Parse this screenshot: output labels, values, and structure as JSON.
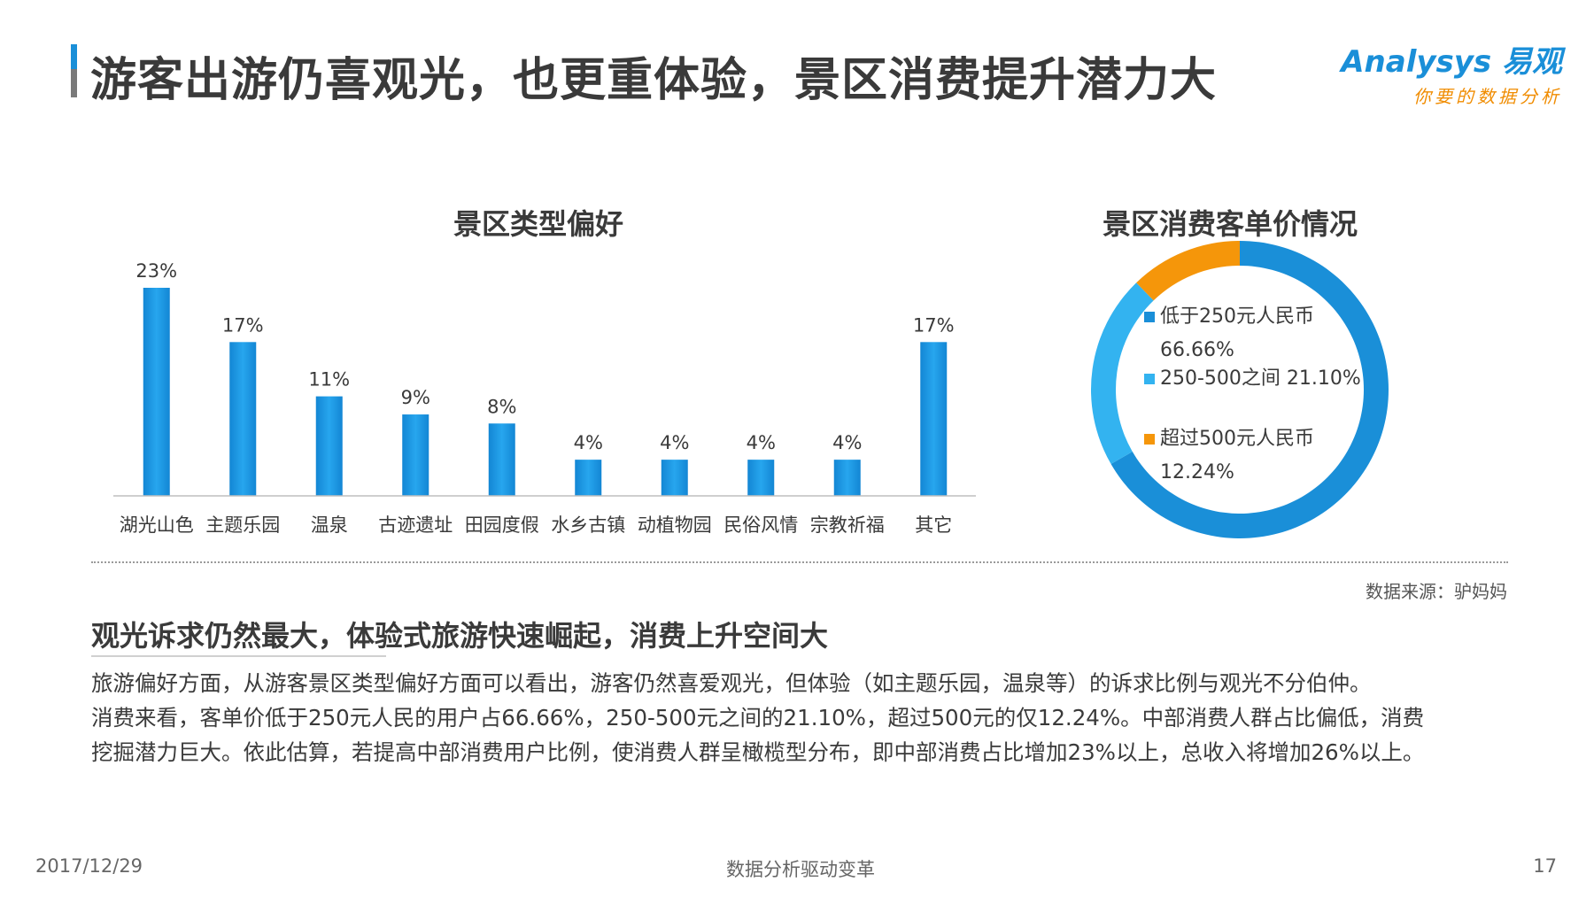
{
  "header": {
    "title": "游客出游仍喜观光，也更重体验，景区消费提升潜力大",
    "logo_main": "Analysys 易观",
    "logo_sub": "你要的数据分析"
  },
  "chart_data": [
    {
      "type": "bar",
      "title": "景区类型偏好",
      "categories": [
        "湖光山色",
        "主题乐园",
        "温泉",
        "古迹遗址",
        "田园度假",
        "水乡古镇",
        "动植物园",
        "民俗风情",
        "宗教祈福",
        "其它"
      ],
      "values": [
        23,
        17,
        11,
        9,
        8,
        4,
        4,
        4,
        4,
        17
      ],
      "data_labels": [
        "23%",
        "17%",
        "11%",
        "9%",
        "8%",
        "4%",
        "4%",
        "4%",
        "4%",
        "17%"
      ],
      "unit": "%",
      "ylim": [
        0,
        23
      ],
      "grid": false,
      "color": "#1a8fd8"
    },
    {
      "type": "pie",
      "title": "景区消费客单价情况",
      "donut": true,
      "slices": [
        {
          "label": "低于250元人民币",
          "value": 66.66,
          "value_label": "66.66%",
          "color": "#1a8fd8"
        },
        {
          "label": "250-500之间",
          "value": 21.1,
          "value_label": "21.10%",
          "color": "#33b3f0"
        },
        {
          "label": "超过500元人民币",
          "value": 12.24,
          "value_label": "12.24%",
          "color": "#f5960a"
        }
      ]
    }
  ],
  "source": "数据来源：驴妈妈",
  "analysis": {
    "heading": "观光诉求仍然最大，体验式旅游快速崛起，消费上升空间大",
    "lines": [
      "旅游偏好方面，从游客景区类型偏好方面可以看出，游客仍然喜爱观光，但体验（如主题乐园，温泉等）的诉求比例与观光不分伯仲。",
      "消费来看，客单价低于250元人民的用户占66.66%，250-500元之间的21.10%，超过500元的仅12.24%。中部消费人群占比偏低，消费",
      "挖掘潜力巨大。依此估算，若提高中部消费用户比例，使消费人群呈橄榄型分布，即中部消费占比增加23%以上，总收入将增加26%以上。"
    ]
  },
  "footer": {
    "date": "2017/12/29",
    "center": "数据分析驱动变革",
    "page": "17"
  }
}
